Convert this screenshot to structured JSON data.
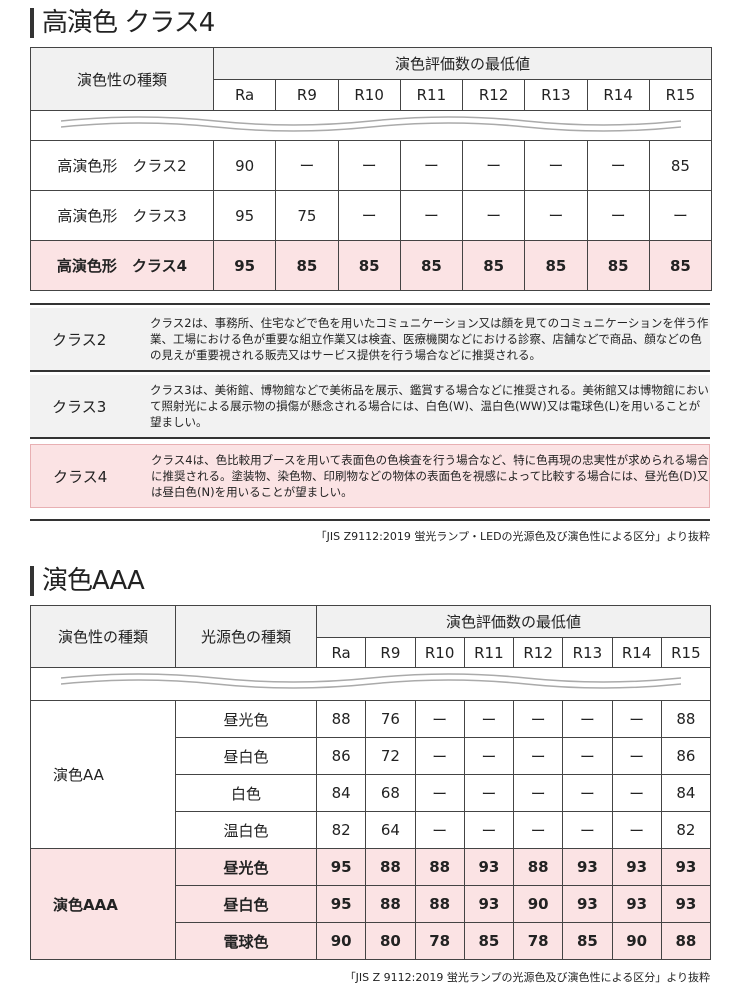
{
  "section1": {
    "title": "高演色 クラス4",
    "header_type": "演色性の種類",
    "header_min": "演色評価数の最低値",
    "columns": [
      "Ra",
      "R9",
      "R10",
      "R11",
      "R12",
      "R13",
      "R14",
      "R15"
    ],
    "rows": [
      {
        "label": "高演色形　クラス2",
        "values": [
          "90",
          "ー",
          "ー",
          "ー",
          "ー",
          "ー",
          "ー",
          "85"
        ],
        "highlight": false
      },
      {
        "label": "高演色形　クラス3",
        "values": [
          "95",
          "75",
          "ー",
          "ー",
          "ー",
          "ー",
          "ー",
          "ー"
        ],
        "highlight": false
      },
      {
        "label": "高演色形　クラス4",
        "values": [
          "95",
          "85",
          "85",
          "85",
          "85",
          "85",
          "85",
          "85"
        ],
        "highlight": true
      }
    ]
  },
  "notes": [
    {
      "label": "クラス2",
      "text": "クラス2は、事務所、住宅などで色を用いたコミュニケーション又は顔を見てのコミュニケーションを伴う作業、工場における色が重要な組立作業又は検査、医療機関などにおける診察、店舗などで商品、顔などの色の見えが重要視される販売又はサービス提供を行う場合などに推奨される。",
      "highlight": false
    },
    {
      "label": "クラス3",
      "text": "クラス3は、美術館、博物館などで美術品を展示、鑑賞する場合などに推奨される。美術館又は博物館において照射光による展示物の損傷が懸念される場合には、白色(W)、温白色(WW)又は電球色(L)を用いることが望ましい。",
      "highlight": false
    },
    {
      "label": "クラス4",
      "text": "クラス4は、色比較用ブースを用いて表面色の色検査を行う場合など、特に色再現の忠実性が求められる場合に推奨される。塗装物、染色物、印刷物などの物体の表面色を視感によって比較する場合には、昼光色(D)又は昼白色(N)を用いることが望ましい。",
      "highlight": true
    }
  ],
  "source1": "「JIS Z9112:2019 蛍光ランプ・LEDの光源色及び演色性による区分」より抜粋",
  "section2": {
    "title": "演色AAA",
    "header_type": "演色性の種類",
    "header_light": "光源色の種類",
    "header_min": "演色評価数の最低値",
    "columns": [
      "Ra",
      "R9",
      "R10",
      "R11",
      "R12",
      "R13",
      "R14",
      "R15"
    ],
    "groups": [
      {
        "label": "演色AA",
        "highlight": false,
        "rows": [
          {
            "light": "昼光色",
            "values": [
              "88",
              "76",
              "ー",
              "ー",
              "ー",
              "ー",
              "ー",
              "88"
            ]
          },
          {
            "light": "昼白色",
            "values": [
              "86",
              "72",
              "ー",
              "ー",
              "ー",
              "ー",
              "ー",
              "86"
            ]
          },
          {
            "light": "白色",
            "values": [
              "84",
              "68",
              "ー",
              "ー",
              "ー",
              "ー",
              "ー",
              "84"
            ]
          },
          {
            "light": "温白色",
            "values": [
              "82",
              "64",
              "ー",
              "ー",
              "ー",
              "ー",
              "ー",
              "82"
            ]
          }
        ]
      },
      {
        "label": "演色AAA",
        "highlight": true,
        "rows": [
          {
            "light": "昼光色",
            "values": [
              "95",
              "88",
              "88",
              "93",
              "88",
              "93",
              "93",
              "93"
            ]
          },
          {
            "light": "昼白色",
            "values": [
              "95",
              "88",
              "88",
              "93",
              "90",
              "93",
              "93",
              "93"
            ]
          },
          {
            "light": "電球色",
            "values": [
              "90",
              "80",
              "78",
              "85",
              "78",
              "85",
              "90",
              "88"
            ]
          }
        ]
      }
    ]
  },
  "source2": "「JIS Z 9112:2019 蛍光ランプの光源色及び演色性による区分」より抜粋"
}
